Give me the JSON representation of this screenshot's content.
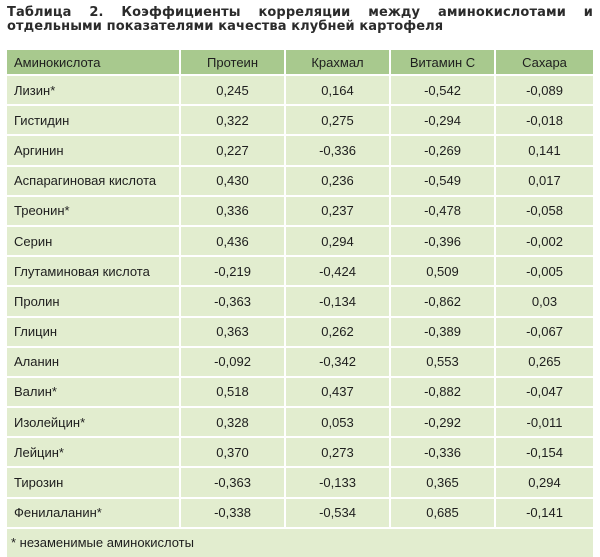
{
  "caption": "Таблица 2. Коэффициенты корреляции между аминокислотами и отдельными показателями качества клубней картофеля",
  "table": {
    "headers": [
      "Аминокислота",
      "Протеин",
      "Крахмал",
      "Витамин С",
      "Сахара"
    ],
    "rows": [
      [
        "Лизин*",
        "0,245",
        "0,164",
        "-0,542",
        "-0,089"
      ],
      [
        "Гистидин",
        "0,322",
        "0,275",
        "-0,294",
        "-0,018"
      ],
      [
        "Аргинин",
        "0,227",
        "-0,336",
        "-0,269",
        "0,141"
      ],
      [
        "Аспарагиновая кислота",
        "0,430",
        "0,236",
        "-0,549",
        "0,017"
      ],
      [
        "Треонин*",
        "0,336",
        "0,237",
        "-0,478",
        "-0,058"
      ],
      [
        "Серин",
        "0,436",
        "0,294",
        "-0,396",
        "-0,002"
      ],
      [
        "Глутаминовая кислота",
        "-0,219",
        "-0,424",
        "0,509",
        "-0,005"
      ],
      [
        "Пролин",
        "-0,363",
        "-0,134",
        "-0,862",
        "0,03"
      ],
      [
        "Глицин",
        "0,363",
        "0,262",
        "-0,389",
        "-0,067"
      ],
      [
        "Аланин",
        "-0,092",
        "-0,342",
        "0,553",
        "0,265"
      ],
      [
        "Валин*",
        "0,518",
        "0,437",
        "-0,882",
        "-0,047"
      ],
      [
        "Изолейцин*",
        "0,328",
        "0,053",
        "-0,292",
        "-0,011"
      ],
      [
        "Лейцин*",
        "0,370",
        "0,273",
        "-0,336",
        "-0,154"
      ],
      [
        "Тирозин",
        "-0,363",
        "-0,133",
        "0,365",
        "0,294"
      ],
      [
        "Фенилаланин*",
        "-0,338",
        "-0,534",
        "0,685",
        "-0,141"
      ]
    ]
  },
  "footnote": "* незаменимые аминокислоты",
  "colors": {
    "header_bg": "#a8c98e",
    "cell_bg": "#e2edcf"
  }
}
